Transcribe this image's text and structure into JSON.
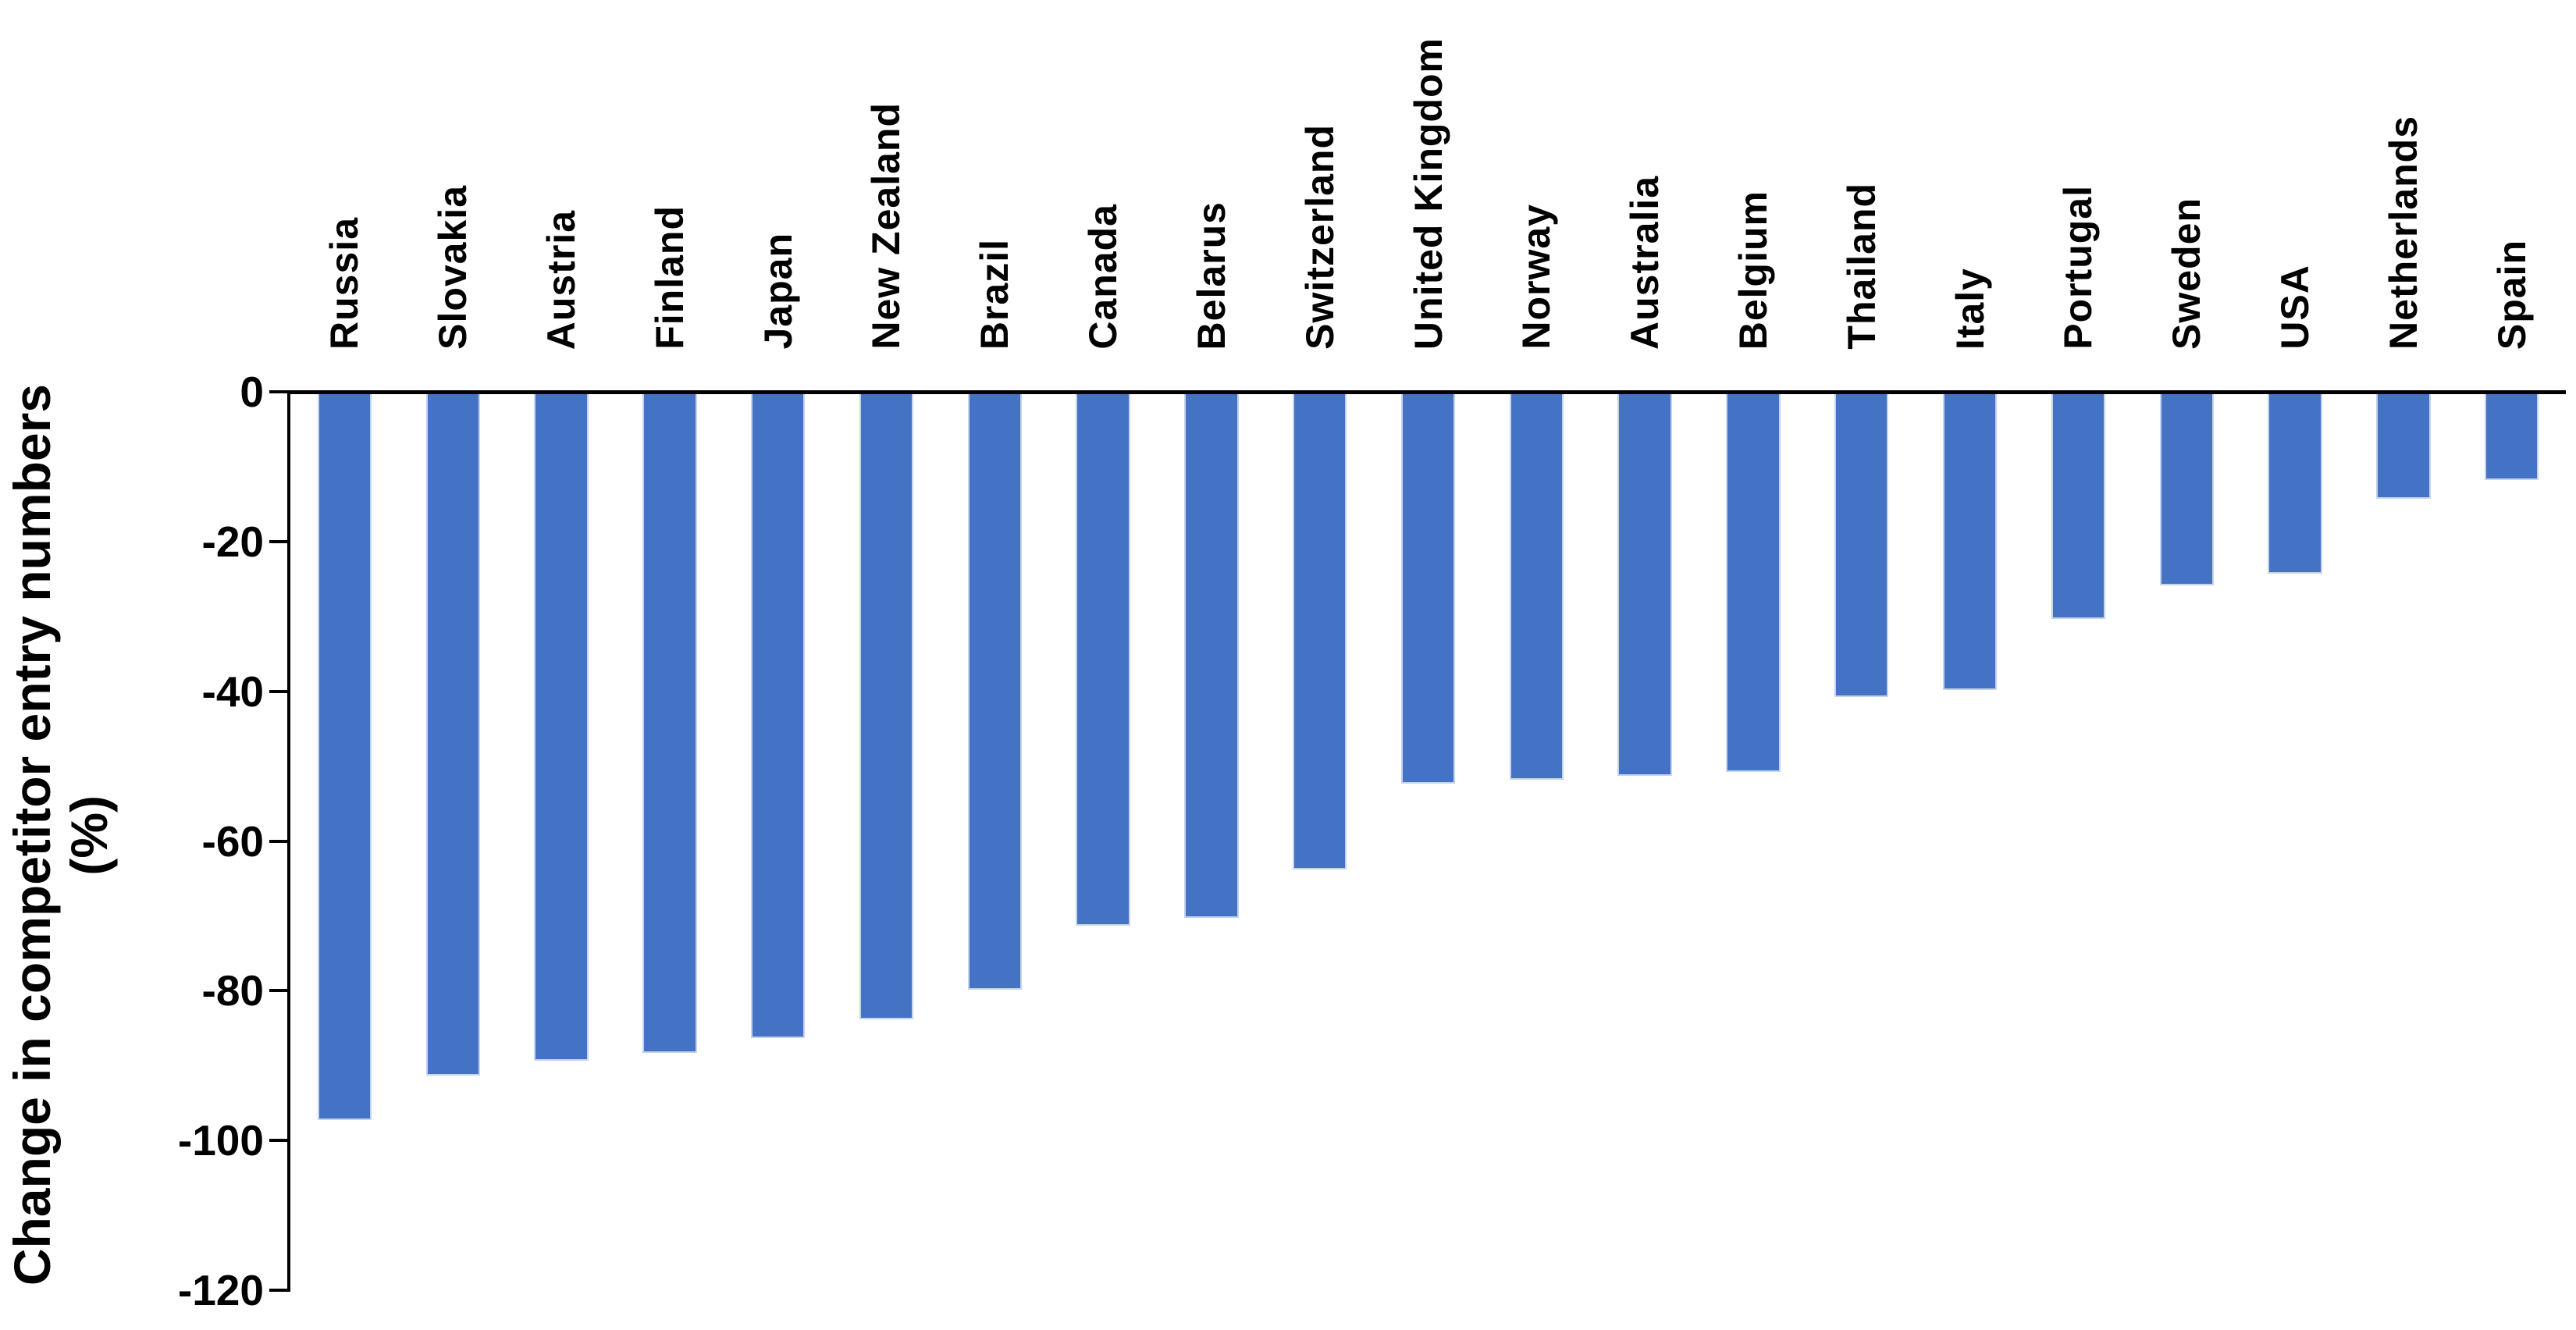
{
  "chart_data": {
    "type": "bar",
    "orientation": "vertical",
    "title": "",
    "xlabel": "",
    "ylabel": "Change in competitor entry numbers (%)",
    "ylabel_line1": "Change in competitor entry numbers",
    "ylabel_line2": "(%)",
    "categories": [
      "Russia",
      "Slovakia",
      "Austria",
      "Finland",
      "Japan",
      "New Zealand",
      "Brazil",
      "Canada",
      "Belarus",
      "Switzerland",
      "United Kingdom",
      "Norway",
      "Australia",
      "Belgium",
      "Thailand",
      "Italy",
      "Portugal",
      "Sweden",
      "USA",
      "Netherlands",
      "Spain"
    ],
    "values": [
      -97,
      -91,
      -89,
      -88,
      -86,
      -83.5,
      -79.5,
      -71,
      -70,
      -63.5,
      -52,
      -51.5,
      -51,
      -50.5,
      -40.5,
      -39.5,
      -30,
      -25.5,
      -24,
      -14,
      -11.5
    ],
    "ylim": [
      -120,
      0
    ],
    "yticks": [
      0,
      -20,
      -40,
      -60,
      -80,
      -100,
      -120
    ],
    "ytick_labels": [
      "0",
      "-20",
      "-40",
      "-60",
      "-80",
      "-100",
      "-120"
    ],
    "grid": "off",
    "legend": "none",
    "bar_color": "#4472C4",
    "bar_edge_color": "#C5D3ED",
    "axis_color": "#000000",
    "text_color": "#000000",
    "background": "#FFFFFF"
  }
}
